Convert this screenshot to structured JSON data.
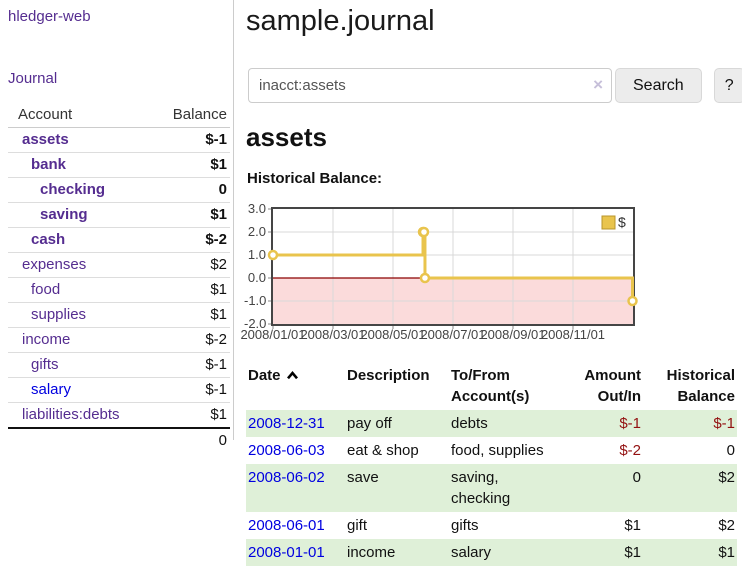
{
  "sidebar": {
    "app_title": "hledger-web",
    "journal_link": "Journal",
    "accounts": {
      "header_account": "Account",
      "header_balance": "Balance",
      "rows": [
        {
          "name": "assets",
          "balance": "$-1",
          "level": 1,
          "bold": true,
          "balance_tone": "neg-strong",
          "link_tone": "purple"
        },
        {
          "name": "bank",
          "balance": "$1",
          "level": 2,
          "bold": true,
          "balance_tone": "normal",
          "link_tone": "purple"
        },
        {
          "name": "checking",
          "balance": "0",
          "level": 3,
          "bold": true,
          "balance_tone": "normal",
          "link_tone": "purple"
        },
        {
          "name": "saving",
          "balance": "$1",
          "level": 3,
          "bold": true,
          "balance_tone": "normal",
          "link_tone": "purple"
        },
        {
          "name": "cash",
          "balance": "$-2",
          "level": 2,
          "bold": true,
          "balance_tone": "neg-strong",
          "link_tone": "purple"
        },
        {
          "name": "expenses",
          "balance": "$2",
          "level": 1,
          "bold": false,
          "balance_tone": "normal",
          "link_tone": "purple"
        },
        {
          "name": "food",
          "balance": "$1",
          "level": 2,
          "bold": false,
          "balance_tone": "normal",
          "link_tone": "purple"
        },
        {
          "name": "supplies",
          "balance": "$1",
          "level": 2,
          "bold": false,
          "balance_tone": "normal",
          "link_tone": "purple"
        },
        {
          "name": "income",
          "balance": "$-2",
          "level": 1,
          "bold": false,
          "balance_tone": "neg-soft",
          "link_tone": "purple"
        },
        {
          "name": "gifts",
          "balance": "$-1",
          "level": 2,
          "bold": false,
          "balance_tone": "neg-soft",
          "link_tone": "purple"
        },
        {
          "name": "salary",
          "balance": "$-1",
          "level": 2,
          "bold": false,
          "balance_tone": "neg-soft",
          "link_tone": "blue"
        },
        {
          "name": "liabilities:debts",
          "balance": "$1",
          "level": 1,
          "bold": false,
          "balance_tone": "normal",
          "link_tone": "purple"
        }
      ],
      "total": "0"
    }
  },
  "main": {
    "page_title": "sample.journal",
    "search": {
      "value": "inacct:assets",
      "clear_icon": "×",
      "search_button": "Search",
      "help_button": "?"
    },
    "account_title": "assets",
    "chart_heading": "Historical Balance:"
  },
  "chart_data": {
    "type": "line",
    "step": true,
    "title": "Historical Balance",
    "series": [
      {
        "name": "$",
        "color": "#e9c44d",
        "points": [
          [
            "2008-01-01",
            1
          ],
          [
            "2008-06-01",
            2
          ],
          [
            "2008-06-02",
            2
          ],
          [
            "2008-06-03",
            0
          ],
          [
            "2008-12-31",
            -1
          ]
        ]
      }
    ],
    "ylim": [
      -2,
      3
    ],
    "y_ticks": [
      3,
      2,
      1,
      0,
      -1,
      -2
    ],
    "y_tick_labels": [
      "3.0",
      "2.0",
      "1.0",
      "0.0",
      "-1.0",
      "-2.0"
    ],
    "x_tick_labels": [
      "2008/01/01",
      "2008/03/01",
      "2008/05/01",
      "2008/07/01",
      "2008/09/01",
      "2008/11/01"
    ],
    "x_domain": [
      "2008-01-01",
      "2009-01-01"
    ],
    "grid": true,
    "legend_position": "top-right",
    "negative_region_fill": "#fbdbdb",
    "zero_line_color": "#8b0000",
    "grid_color": "#d9d9d9",
    "border_color": "#454545"
  },
  "transactions": {
    "headers": {
      "date": "Date",
      "description": "Description",
      "accounts": "To/From Account(s)",
      "amount": "Amount Out/In",
      "balance": "Historical Balance"
    },
    "sort_icon": "chevron-up",
    "rows": [
      {
        "date": "2008-12-31",
        "description": "pay off",
        "accounts": "debts",
        "amount": "$-1",
        "balance": "$-1"
      },
      {
        "date": "2008-06-03",
        "description": "eat & shop",
        "accounts": "food, supplies",
        "amount": "$-2",
        "balance": "0"
      },
      {
        "date": "2008-06-02",
        "description": "save",
        "accounts": "saving, checking",
        "amount": "0",
        "balance": "$2"
      },
      {
        "date": "2008-06-01",
        "description": "gift",
        "accounts": "gifts",
        "amount": "$1",
        "balance": "$2"
      },
      {
        "date": "2008-01-01",
        "description": "income",
        "accounts": "salary",
        "amount": "$1",
        "balance": "$1"
      }
    ]
  },
  "colors": {
    "link_purple": "#552d90",
    "link_blue": "#0000e0",
    "neg_strong": "#931111",
    "neg_soft": "#bd8585",
    "row_shade": "#dff0d8"
  }
}
